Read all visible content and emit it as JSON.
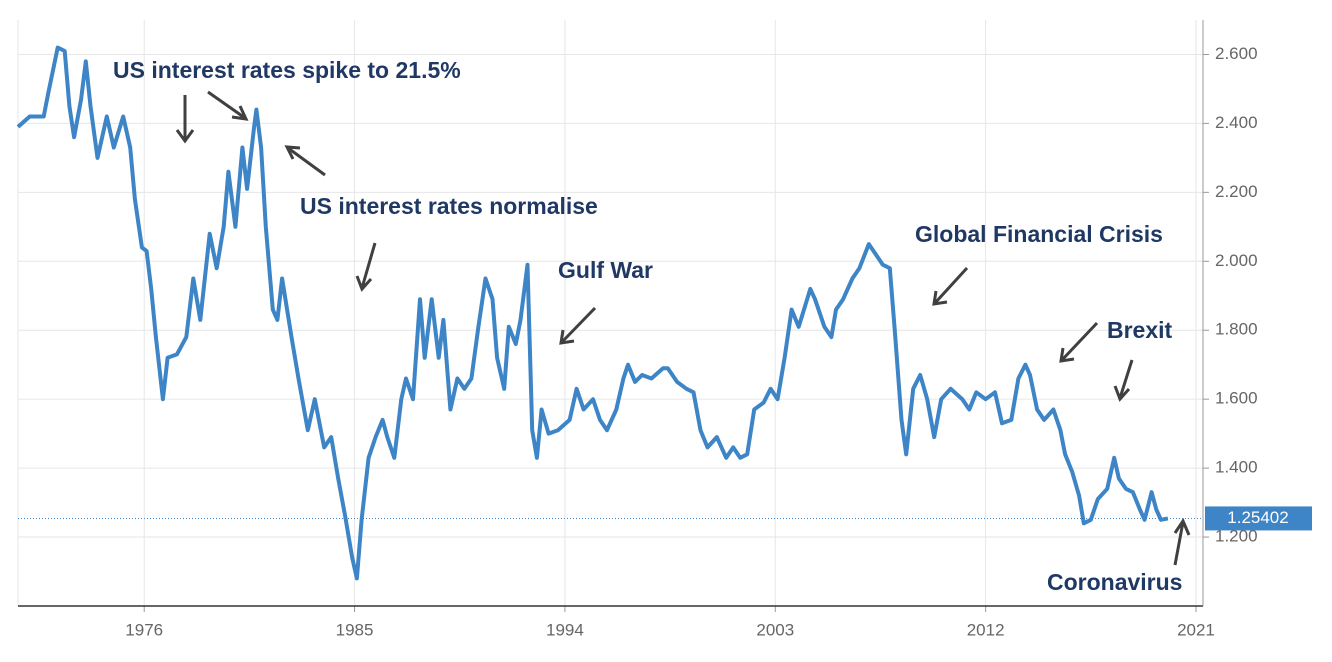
{
  "chart_data": {
    "type": "line",
    "annotations": [
      "US interest rates spike to 21.5%",
      "US interest rates normalise",
      "Gulf War",
      "Global Financial Crisis",
      "Brexit",
      "Coronavirus"
    ],
    "color": "#3d85c6",
    "grid": true,
    "xlim": [
      1970.6,
      2021.3
    ],
    "xticks": [
      1976,
      1985,
      1994,
      2003,
      2012,
      2021
    ],
    "ylim": [
      1.0,
      2.7
    ],
    "yticks": [
      {
        "value": 1.2,
        "label": "1.200"
      },
      {
        "value": 1.4,
        "label": "1.400"
      },
      {
        "value": 1.6,
        "label": "1.600"
      },
      {
        "value": 1.8,
        "label": "1.800"
      },
      {
        "value": 2.0,
        "label": "2.000"
      },
      {
        "value": 2.2,
        "label": "2.200"
      },
      {
        "value": 2.4,
        "label": "2.400"
      },
      {
        "value": 2.6,
        "label": "2.600"
      }
    ],
    "x": [
      1970.6,
      1971.1,
      1971.7,
      1971.9,
      1972.3,
      1972.6,
      1972.8,
      1973.0,
      1973.3,
      1973.5,
      1973.7,
      1974.0,
      1974.4,
      1974.7,
      1975.1,
      1975.4,
      1975.6,
      1975.9,
      1976.1,
      1976.3,
      1976.5,
      1976.8,
      1977.0,
      1977.4,
      1977.8,
      1978.1,
      1978.4,
      1978.8,
      1979.1,
      1979.4,
      1979.6,
      1979.9,
      1980.2,
      1980.4,
      1980.7,
      1980.8,
      1981.0,
      1981.2,
      1981.5,
      1981.7,
      1981.9,
      1982.3,
      1982.6,
      1983.0,
      1983.3,
      1983.7,
      1984.0,
      1984.3,
      1984.6,
      1984.9,
      1985.1,
      1985.3,
      1985.6,
      1985.9,
      1986.2,
      1986.4,
      1986.7,
      1987.0,
      1987.2,
      1987.5,
      1987.8,
      1988.0,
      1988.3,
      1988.6,
      1988.8,
      1989.1,
      1989.4,
      1989.7,
      1990.0,
      1990.3,
      1990.6,
      1990.9,
      1991.1,
      1991.4,
      1991.6,
      1991.9,
      1992.1,
      1992.4,
      1992.6,
      1992.8,
      1993.0,
      1993.3,
      1993.7,
      1994.2,
      1994.5,
      1994.8,
      1995.2,
      1995.5,
      1995.8,
      1996.2,
      1996.5,
      1996.7,
      1997.0,
      1997.3,
      1997.7,
      1998.2,
      1998.4,
      1998.8,
      1999.2,
      1999.5,
      1999.8,
      2000.1,
      2000.5,
      2000.9,
      2001.2,
      2001.5,
      2001.8,
      2002.1,
      2002.5,
      2002.8,
      2003.1,
      2003.4,
      2003.7,
      2004.0,
      2004.5,
      2004.7,
      2005.1,
      2005.4,
      2005.6,
      2005.9,
      2006.3,
      2006.6,
      2007.0,
      2007.3,
      2007.6,
      2007.9,
      2008.1,
      2008.4,
      2008.6,
      2008.9,
      2009.2,
      2009.5,
      2009.8,
      2010.1,
      2010.5,
      2011.0,
      2011.3,
      2011.6,
      2012.0,
      2012.4,
      2012.7,
      2013.1,
      2013.4,
      2013.7,
      2013.9,
      2014.2,
      2014.5,
      2014.9,
      2015.2,
      2015.4,
      2015.7,
      2016.0,
      2016.2,
      2016.5,
      2016.8,
      2017.2,
      2017.5,
      2017.7,
      2018.0,
      2018.3,
      2018.6,
      2018.8,
      2019.1,
      2019.3,
      2019.5,
      2019.8
    ],
    "values": [
      2.39,
      2.42,
      2.42,
      2.49,
      2.62,
      2.61,
      2.45,
      2.36,
      2.47,
      2.58,
      2.45,
      2.3,
      2.42,
      2.33,
      2.42,
      2.33,
      2.18,
      2.04,
      2.03,
      1.92,
      1.78,
      1.6,
      1.72,
      1.73,
      1.78,
      1.95,
      1.83,
      2.08,
      1.98,
      2.1,
      2.26,
      2.1,
      2.33,
      2.21,
      2.39,
      2.44,
      2.33,
      2.1,
      1.86,
      1.83,
      1.95,
      1.78,
      1.66,
      1.51,
      1.6,
      1.46,
      1.49,
      1.37,
      1.26,
      1.14,
      1.08,
      1.25,
      1.43,
      1.49,
      1.54,
      1.49,
      1.43,
      1.6,
      1.66,
      1.6,
      1.89,
      1.72,
      1.89,
      1.72,
      1.83,
      1.57,
      1.66,
      1.63,
      1.66,
      1.81,
      1.95,
      1.89,
      1.72,
      1.63,
      1.81,
      1.76,
      1.83,
      1.99,
      1.51,
      1.43,
      1.57,
      1.5,
      1.51,
      1.54,
      1.63,
      1.57,
      1.6,
      1.54,
      1.51,
      1.57,
      1.66,
      1.7,
      1.65,
      1.67,
      1.66,
      1.69,
      1.69,
      1.65,
      1.63,
      1.62,
      1.51,
      1.46,
      1.49,
      1.43,
      1.46,
      1.43,
      1.44,
      1.57,
      1.59,
      1.63,
      1.6,
      1.72,
      1.86,
      1.81,
      1.92,
      1.89,
      1.81,
      1.78,
      1.86,
      1.89,
      1.95,
      1.98,
      2.05,
      2.02,
      1.99,
      1.98,
      1.81,
      1.54,
      1.44,
      1.63,
      1.67,
      1.6,
      1.49,
      1.6,
      1.63,
      1.6,
      1.57,
      1.62,
      1.6,
      1.62,
      1.53,
      1.54,
      1.66,
      1.7,
      1.67,
      1.57,
      1.54,
      1.57,
      1.51,
      1.44,
      1.39,
      1.32,
      1.24,
      1.25,
      1.31,
      1.34,
      1.43,
      1.37,
      1.34,
      1.33,
      1.28,
      1.25,
      1.33,
      1.28,
      1.25,
      1.25402
    ]
  }
}
